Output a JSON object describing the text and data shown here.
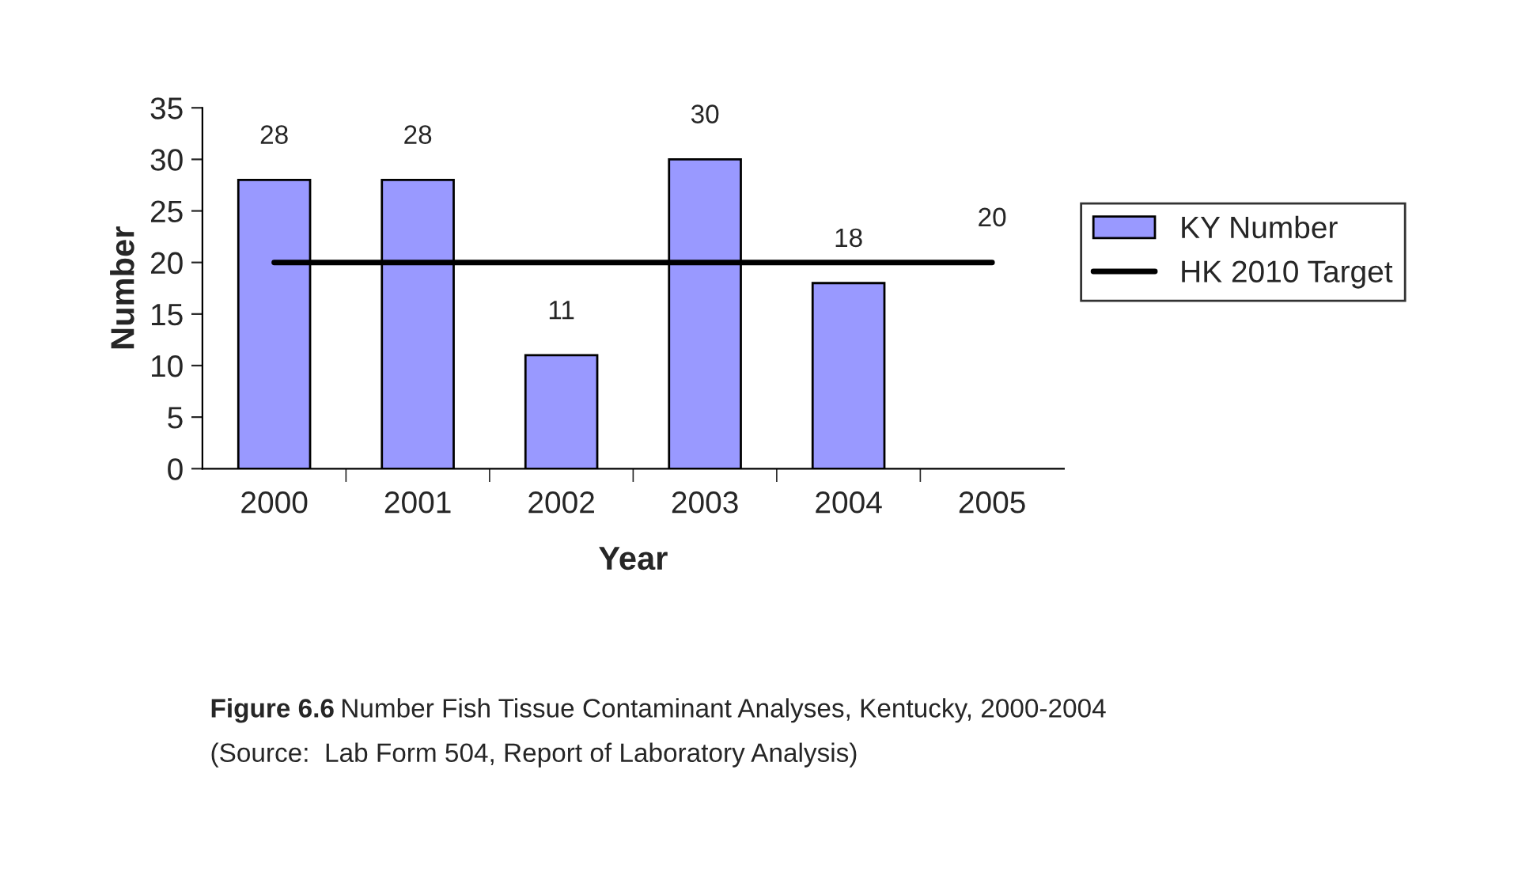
{
  "chart_data": {
    "type": "bar",
    "xlabel": "Year",
    "ylabel": "Number",
    "categories": [
      "2000",
      "2001",
      "2002",
      "2003",
      "2004",
      "2005"
    ],
    "series": [
      {
        "name": "KY Number",
        "color": "#9999ff",
        "values": [
          28,
          28,
          11,
          30,
          18,
          null
        ],
        "value_labels": [
          "28",
          "28",
          "11",
          "30",
          "18",
          null
        ]
      },
      {
        "name": "HK 2010 Target",
        "type": "line",
        "color": "#000000",
        "values": [
          20,
          20,
          20,
          20,
          20,
          20
        ],
        "value_labels": [
          null,
          null,
          null,
          null,
          null,
          "20"
        ]
      }
    ],
    "ylim": [
      0,
      35
    ],
    "yticks": [
      0,
      5,
      10,
      15,
      20,
      25,
      30,
      35
    ],
    "grid": false,
    "legend": "right",
    "annotations": [
      "Figure 6.6",
      "Number Fish Tissue Contaminant Analyses, Kentucky, 2000-2004",
      "(Source:  Lab Form 504, Report of Laboratory Analysis)"
    ]
  }
}
